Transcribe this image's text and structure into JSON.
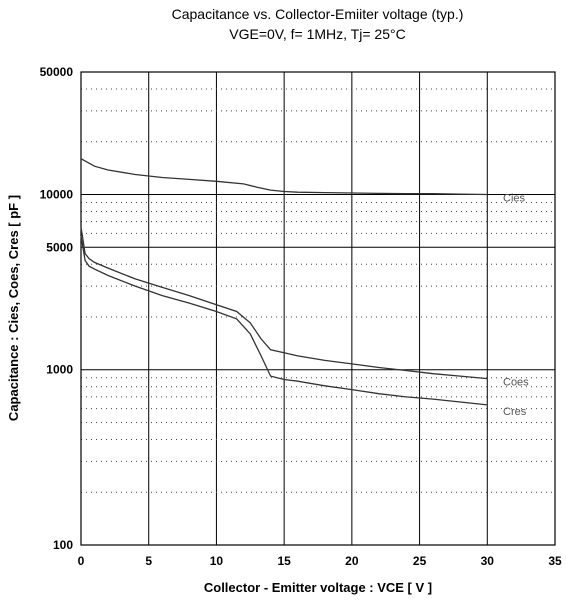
{
  "chart_data": {
    "type": "line",
    "title": "Capacitance  vs.  Collector-Emiiter voltage  (typ.)",
    "subtitle": "VGE=0V,  f= 1MHz,  Tj= 25°C",
    "xlabel": "Collector - Emitter voltage : VCE  [ V ]",
    "ylabel": "Capacitance : Cies, Coes, Cres [ pF ]",
    "xlim": [
      0,
      35
    ],
    "ylim": [
      100,
      50000
    ],
    "yscale": "log",
    "x_ticks": [
      0,
      5,
      10,
      15,
      20,
      25,
      30,
      35
    ],
    "y_ticks": [
      100,
      1000,
      5000,
      10000,
      50000
    ],
    "y_tick_labels": [
      "100",
      "1000",
      "5000",
      "10000",
      "50000"
    ],
    "grid": true,
    "series": [
      {
        "name": "Cies",
        "x": [
          0,
          1,
          2,
          4,
          6,
          8,
          10,
          12,
          13,
          14,
          15,
          16,
          18,
          20,
          22,
          24,
          26,
          28,
          30
        ],
        "y": [
          16000,
          14500,
          13800,
          13000,
          12500,
          12200,
          11900,
          11500,
          11000,
          10600,
          10400,
          10300,
          10250,
          10200,
          10150,
          10100,
          10100,
          10050,
          10000
        ]
      },
      {
        "name": "Coes",
        "x": [
          0,
          0.1,
          0.3,
          0.6,
          1,
          2,
          4,
          6,
          8,
          10,
          11.5,
          12.5,
          13.3,
          14,
          15,
          16,
          18,
          20,
          22,
          24,
          26,
          28,
          30
        ],
        "y": [
          6500,
          5800,
          4600,
          4300,
          4100,
          3800,
          3300,
          2950,
          2650,
          2350,
          2150,
          1850,
          1500,
          1300,
          1250,
          1200,
          1130,
          1080,
          1030,
          990,
          950,
          920,
          890
        ]
      },
      {
        "name": "Cres",
        "x": [
          0,
          0.1,
          0.3,
          0.6,
          1,
          2,
          4,
          6,
          8,
          10,
          11.5,
          12.5,
          13.3,
          14,
          15,
          16,
          18,
          20,
          22,
          24,
          26,
          28,
          30
        ],
        "y": [
          5800,
          5200,
          4200,
          3900,
          3750,
          3450,
          3000,
          2650,
          2400,
          2150,
          1950,
          1600,
          1200,
          920,
          880,
          860,
          810,
          770,
          730,
          700,
          680,
          655,
          630
        ]
      }
    ]
  }
}
